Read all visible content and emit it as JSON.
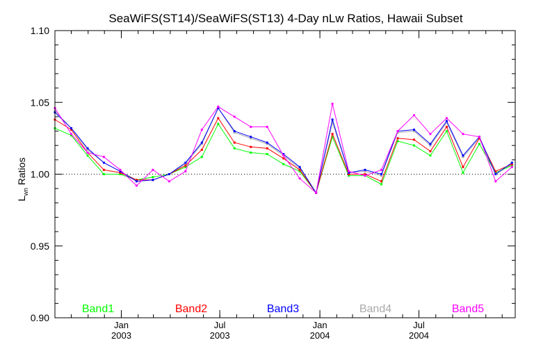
{
  "chart_data": {
    "type": "line",
    "title": "SeaWiFS(ST14)/SeaWiFS(ST13) 4-Day nLw Ratios, Hawaii Subset",
    "ylabel_main": "L",
    "ylabel_sub": "wn",
    "ylabel_rest": " Ratios",
    "xlabel": "",
    "ylim": [
      0.9,
      1.1
    ],
    "yticks": [
      "0.90",
      "0.95",
      "1.00",
      "1.05",
      "1.10"
    ],
    "xrange": [
      "2002-09-01",
      "2004-12-25"
    ],
    "xticks": [
      {
        "date": "2003-01-01",
        "month": "Jan",
        "year": "2003"
      },
      {
        "date": "2003-07-01",
        "month": "Jul",
        "year": "2003"
      },
      {
        "date": "2004-01-01",
        "month": "Jan",
        "year": "2004"
      },
      {
        "date": "2004-07-01",
        "month": "Jul",
        "year": "2004"
      }
    ],
    "reference_line": 1.0,
    "x": [
      "2002-09-01",
      "2002-10-01",
      "2002-10-31",
      "2002-11-30",
      "2002-12-30",
      "2003-01-29",
      "2003-02-28",
      "2003-03-30",
      "2003-04-29",
      "2003-05-29",
      "2003-06-28",
      "2003-07-28",
      "2003-08-27",
      "2003-09-26",
      "2003-10-26",
      "2003-11-25",
      "2003-12-25",
      "2004-01-24",
      "2004-02-23",
      "2004-03-24",
      "2004-04-23",
      "2004-05-23",
      "2004-06-22",
      "2004-07-22",
      "2004-08-21",
      "2004-09-20",
      "2004-10-20",
      "2004-11-19",
      "2004-12-19"
    ],
    "series": [
      {
        "name": "Band1",
        "color": "#00ff00",
        "values": [
          1.032,
          1.027,
          1.013,
          1.0,
          1.0,
          0.996,
          0.998,
          1.0,
          1.005,
          1.012,
          1.035,
          1.018,
          1.015,
          1.014,
          1.007,
          1.002,
          0.987,
          1.026,
          0.999,
          0.999,
          0.993,
          1.023,
          1.02,
          1.013,
          1.03,
          1.001,
          1.021,
          1.001,
          1.006
        ]
      },
      {
        "name": "Band2",
        "color": "#ff0000",
        "values": [
          1.038,
          1.031,
          1.015,
          1.003,
          1.001,
          0.996,
          0.996,
          1.0,
          1.006,
          1.017,
          1.039,
          1.022,
          1.019,
          1.018,
          1.011,
          1.003,
          0.987,
          1.028,
          1.0,
          1.0,
          0.995,
          1.025,
          1.024,
          1.016,
          1.033,
          1.005,
          1.025,
          1.002,
          1.007
        ]
      },
      {
        "name": "Band3",
        "color": "#0000ff",
        "values": [
          1.043,
          1.032,
          1.018,
          1.008,
          1.002,
          0.995,
          0.996,
          1.0,
          1.008,
          1.022,
          1.046,
          1.03,
          1.026,
          1.022,
          1.014,
          1.005,
          0.987,
          1.038,
          1.001,
          1.003,
          1.0,
          1.03,
          1.031,
          1.021,
          1.037,
          1.013,
          1.026,
          1.0,
          1.008
        ]
      },
      {
        "name": "Band4",
        "color": "#aaaaaa",
        "values": [
          1.044,
          1.032,
          1.017,
          1.008,
          1.002,
          0.996,
          0.996,
          1.0,
          1.007,
          1.021,
          1.046,
          1.029,
          1.025,
          1.021,
          1.013,
          1.004,
          0.987,
          1.036,
          1.001,
          1.002,
          0.999,
          1.029,
          1.03,
          1.02,
          1.036,
          1.012,
          1.025,
          1.0,
          1.007
        ]
      },
      {
        "name": "Band5",
        "color": "#ff00ff",
        "values": [
          1.046,
          1.028,
          1.015,
          1.012,
          1.003,
          0.992,
          1.003,
          0.995,
          1.002,
          1.031,
          1.047,
          1.04,
          1.033,
          1.033,
          1.013,
          0.997,
          0.987,
          1.049,
          1.002,
          0.999,
          1.003,
          1.03,
          1.041,
          1.028,
          1.039,
          1.028,
          1.026,
          0.995,
          1.005
        ]
      }
    ],
    "grid": false,
    "legend_position": "bottom"
  }
}
